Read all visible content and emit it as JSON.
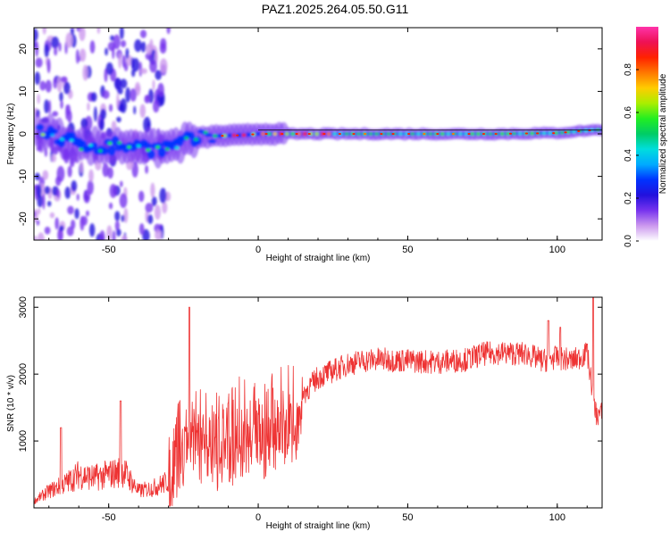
{
  "title": "PAZ1.2025.264.05.50.G11",
  "chart_data": [
    {
      "type": "heatmap",
      "title": "",
      "xlabel": "Height of straight line (km)",
      "ylabel": "Frequency (Hz)",
      "xlim": [
        -75,
        115
      ],
      "ylim": [
        -25,
        25
      ],
      "xticks": [
        -50,
        0,
        50,
        100
      ],
      "yticks": [
        -20,
        -10,
        0,
        10,
        20
      ],
      "colorbar": {
        "label": "Normalized spectral amplitude",
        "range": [
          0,
          1
        ],
        "ticks": [
          0.0,
          0.2,
          0.4,
          0.6,
          0.8
        ],
        "tick_labels": [
          "0.0",
          "0.2",
          "0.4",
          "0.6",
          "0.8"
        ],
        "colors": [
          "#ffffff",
          "#cc99ee",
          "#7733ee",
          "#2211dd",
          "#0033ff",
          "#00aaff",
          "#00dddd",
          "#00cc66",
          "#22ee22",
          "#aaee00",
          "#ffcc00",
          "#ff7700",
          "#ff2200",
          "#ee1155",
          "#ff33aa"
        ]
      },
      "ridge": [
        {
          "x": -70,
          "y": 0.5
        },
        {
          "x": -65,
          "y": -1.5
        },
        {
          "x": -60,
          "y": -2.5
        },
        {
          "x": -55,
          "y": -2.8
        },
        {
          "x": -50,
          "y": -3.0
        },
        {
          "x": -45,
          "y": -2.8
        },
        {
          "x": -40,
          "y": -2.5
        },
        {
          "x": -35,
          "y": -3.5
        },
        {
          "x": -30,
          "y": -3.2
        },
        {
          "x": -25,
          "y": -2.0
        },
        {
          "x": -20,
          "y": -1.0
        },
        {
          "x": -15,
          "y": -0.5
        },
        {
          "x": -10,
          "y": -0.4
        },
        {
          "x": -5,
          "y": -0.3
        },
        {
          "x": 0,
          "y": 0
        },
        {
          "x": 20,
          "y": 0
        },
        {
          "x": 50,
          "y": 0
        },
        {
          "x": 80,
          "y": 0
        },
        {
          "x": 100,
          "y": 0.2
        },
        {
          "x": 110,
          "y": 0.8
        },
        {
          "x": 115,
          "y": 1.0
        }
      ]
    },
    {
      "type": "line",
      "title": "",
      "xlabel": "Height of straight line (km)",
      "ylabel": "SNR (10 * v/v)",
      "xlim": [
        -75,
        115
      ],
      "ylim": [
        0,
        3150
      ],
      "xticks": [
        -50,
        0,
        50,
        100
      ],
      "yticks": [
        1000,
        2000,
        3000
      ],
      "series": [
        {
          "name": "SNR",
          "color": "#ee3333",
          "envelope": [
            {
              "x": -75,
              "y": 100
            },
            {
              "x": -70,
              "y": 250
            },
            {
              "x": -65,
              "y": 350
            },
            {
              "x": -60,
              "y": 500
            },
            {
              "x": -55,
              "y": 450
            },
            {
              "x": -50,
              "y": 500
            },
            {
              "x": -45,
              "y": 550
            },
            {
              "x": -40,
              "y": 250
            },
            {
              "x": -35,
              "y": 300
            },
            {
              "x": -30,
              "y": 400
            },
            {
              "x": -27,
              "y": 900
            },
            {
              "x": -24,
              "y": 1400
            },
            {
              "x": -20,
              "y": 1300
            },
            {
              "x": -15,
              "y": 1100
            },
            {
              "x": -10,
              "y": 1200
            },
            {
              "x": -5,
              "y": 1300
            },
            {
              "x": 0,
              "y": 1250
            },
            {
              "x": 5,
              "y": 1350
            },
            {
              "x": 10,
              "y": 1500
            },
            {
              "x": 15,
              "y": 1700
            },
            {
              "x": 20,
              "y": 1950
            },
            {
              "x": 25,
              "y": 2050
            },
            {
              "x": 30,
              "y": 2150
            },
            {
              "x": 35,
              "y": 2200
            },
            {
              "x": 40,
              "y": 2220
            },
            {
              "x": 50,
              "y": 2200
            },
            {
              "x": 60,
              "y": 2180
            },
            {
              "x": 70,
              "y": 2220
            },
            {
              "x": 75,
              "y": 2300
            },
            {
              "x": 80,
              "y": 2320
            },
            {
              "x": 90,
              "y": 2300
            },
            {
              "x": 95,
              "y": 2200
            },
            {
              "x": 100,
              "y": 2250
            },
            {
              "x": 105,
              "y": 2200
            },
            {
              "x": 110,
              "y": 2300
            },
            {
              "x": 113,
              "y": 1400
            }
          ],
          "spikes": [
            {
              "x": -23,
              "y": 3000
            },
            {
              "x": -66,
              "y": 1200
            },
            {
              "x": -46,
              "y": 1600
            },
            {
              "x": 97,
              "y": 2800
            },
            {
              "x": 101,
              "y": 2700
            },
            {
              "x": 112,
              "y": 3150
            },
            {
              "x": 110,
              "y": 2450
            }
          ]
        }
      ]
    }
  ]
}
